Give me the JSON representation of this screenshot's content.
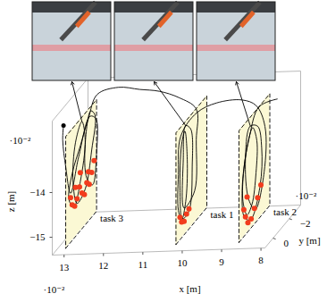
{
  "chart_data": {
    "type": "line3d",
    "x_label": "x [m]",
    "y_label": "y [m]",
    "z_label": "z [m]",
    "x_scale_text": "·10⁻²",
    "y_scale_text": "·10⁻²",
    "z_scale_text": "·10⁻²",
    "xlim": [
      13.3,
      7.9
    ],
    "xticks": [
      13,
      12,
      11,
      10,
      9,
      8
    ],
    "ylim": [
      1,
      -3.4
    ],
    "yticks": [
      0,
      {
        "value": -2,
        "label": "−2"
      }
    ],
    "zlim": [
      -15.4,
      -12.4
    ],
    "zticks": [
      {
        "value": -15,
        "label": "−15"
      },
      {
        "value": -14,
        "label": "−14"
      }
    ],
    "tasks": [
      {
        "name": "task 3",
        "x": 13.0,
        "y": [
          0.8,
          -3.0
        ],
        "z": [
          -15.3,
          -12.8
        ]
      },
      {
        "name": "task 1",
        "x": 10.2,
        "y": [
          0.8,
          -3.0
        ],
        "z": [
          -15.3,
          -12.8
        ]
      },
      {
        "name": "task 2",
        "x": 8.6,
        "y": [
          0.8,
          -3.0
        ],
        "z": [
          -15.3,
          -12.8
        ]
      }
    ],
    "series": [
      {
        "type": "line",
        "color": "#000000",
        "points": [
          [
            8.0,
            -1.0,
            -12.5
          ],
          [
            8.5,
            -1.2,
            -12.7
          ],
          [
            8.6,
            -0.5,
            -13.2
          ],
          [
            8.6,
            0.2,
            -13.8
          ],
          [
            8.6,
            0.3,
            -14.5
          ],
          [
            8.6,
            -0.2,
            -14.9
          ],
          [
            8.6,
            -0.8,
            -14.8
          ],
          [
            8.6,
            -1.3,
            -14.2
          ],
          [
            8.6,
            -1.4,
            -13.5
          ],
          [
            8.6,
            -0.9,
            -13.1
          ],
          [
            8.6,
            -0.2,
            -13.4
          ],
          [
            8.6,
            0.4,
            -14.2
          ],
          [
            8.6,
            0.1,
            -14.9
          ],
          [
            8.6,
            -0.6,
            -15.1
          ],
          [
            8.6,
            -1.8,
            -14.6
          ],
          [
            8.6,
            -2.0,
            -13.8
          ],
          [
            8.6,
            -1.5,
            -13.2
          ],
          [
            8.6,
            -0.6,
            -13.0
          ],
          [
            8.6,
            0.0,
            -13.6
          ],
          [
            8.6,
            -0.4,
            -14.6
          ],
          [
            8.6,
            -1.2,
            -15.0
          ],
          [
            8.6,
            -2.3,
            -14.4
          ],
          [
            8.6,
            -2.4,
            -13.4
          ],
          [
            8.7,
            -1.8,
            -12.8
          ],
          [
            9.0,
            -1.5,
            -12.6
          ],
          [
            9.5,
            -0.8,
            -12.5
          ],
          [
            9.9,
            -0.3,
            -12.6
          ],
          [
            10.2,
            0.2,
            -13.0
          ],
          [
            10.2,
            0.5,
            -13.8
          ],
          [
            10.2,
            0.5,
            -14.6
          ],
          [
            10.2,
            0.1,
            -14.9
          ],
          [
            10.2,
            -0.4,
            -14.6
          ],
          [
            10.2,
            -0.6,
            -13.8
          ],
          [
            10.2,
            -0.3,
            -13.0
          ],
          [
            10.2,
            0.1,
            -13.2
          ],
          [
            10.2,
            0.3,
            -14.2
          ],
          [
            10.2,
            0.0,
            -14.9
          ],
          [
            10.2,
            -0.8,
            -14.9
          ],
          [
            10.2,
            -1.2,
            -14.0
          ],
          [
            10.2,
            -1.0,
            -13.1
          ],
          [
            10.2,
            -0.4,
            -12.9
          ],
          [
            10.2,
            -0.1,
            -13.6
          ],
          [
            10.2,
            -0.2,
            -14.7
          ],
          [
            10.2,
            -1.5,
            -14.6
          ],
          [
            10.2,
            -1.7,
            -13.5
          ],
          [
            10.1,
            -1.2,
            -12.7
          ],
          [
            10.6,
            -1.5,
            -12.5
          ],
          [
            11.2,
            -2.0,
            -12.45
          ],
          [
            11.8,
            -2.5,
            -12.5
          ],
          [
            12.4,
            -2.8,
            -12.5
          ],
          [
            12.9,
            -2.6,
            -12.6
          ],
          [
            13.0,
            -2.0,
            -13.0
          ],
          [
            13.0,
            -1.0,
            -13.4
          ],
          [
            13.0,
            0.0,
            -13.8
          ],
          [
            13.0,
            0.4,
            -14.3
          ],
          [
            13.0,
            -0.2,
            -14.6
          ],
          [
            13.0,
            -1.0,
            -14.2
          ],
          [
            13.0,
            -1.6,
            -13.4
          ],
          [
            13.0,
            -1.2,
            -12.9
          ],
          [
            13.0,
            -0.4,
            -13.2
          ],
          [
            13.0,
            -0.1,
            -14.0
          ],
          [
            13.0,
            -0.6,
            -14.6
          ],
          [
            13.0,
            -1.6,
            -14.5
          ],
          [
            13.0,
            -2.4,
            -13.8
          ],
          [
            13.0,
            -2.8,
            -13.1
          ],
          [
            13.0,
            -2.3,
            -12.9
          ],
          [
            13.0,
            -1.6,
            -13.5
          ],
          [
            13.0,
            -1.8,
            -14.3
          ],
          [
            13.0,
            -2.5,
            -14.6
          ],
          [
            13.0,
            -3.0,
            -14.0
          ],
          [
            13.0,
            -2.9,
            -13.2
          ],
          [
            13.0,
            -2.2,
            -13.0
          ],
          [
            13.0,
            -0.8,
            -13.6
          ],
          [
            13.0,
            0.2,
            -14.2
          ],
          [
            13.1,
            0.3,
            -13.6
          ],
          [
            13.2,
            0.2,
            -13.0
          ],
          [
            13.2,
            0.1,
            -12.7
          ]
        ]
      },
      {
        "type": "scatter",
        "color": "#f23c1d",
        "points": [
          [
            13.0,
            0.2,
            -14.3
          ],
          [
            13.0,
            0.0,
            -14.5
          ],
          [
            13.0,
            -0.3,
            -14.6
          ],
          [
            13.0,
            -0.6,
            -14.5
          ],
          [
            13.0,
            -0.9,
            -14.3
          ],
          [
            13.0,
            -1.2,
            -14.5
          ],
          [
            13.0,
            -1.5,
            -14.6
          ],
          [
            13.0,
            -1.8,
            -14.4
          ],
          [
            13.0,
            -2.1,
            -14.5
          ],
          [
            13.0,
            -2.4,
            -14.3
          ],
          [
            13.0,
            -2.7,
            -14.1
          ],
          [
            13.0,
            -0.4,
            -14.2
          ],
          [
            13.0,
            -1.0,
            -14.0
          ],
          [
            13.0,
            -2.0,
            -14.2
          ],
          [
            10.2,
            0.3,
            -14.8
          ],
          [
            10.2,
            0.1,
            -14.95
          ],
          [
            10.2,
            -0.2,
            -15.0
          ],
          [
            10.2,
            -0.5,
            -14.9
          ],
          [
            10.2,
            -0.8,
            -14.85
          ],
          [
            8.6,
            0.2,
            -14.7
          ],
          [
            8.6,
            0.0,
            -14.9
          ],
          [
            8.6,
            -0.3,
            -15.1
          ],
          [
            8.6,
            -0.7,
            -15.1
          ],
          [
            8.6,
            -1.1,
            -14.95
          ],
          [
            8.6,
            -1.5,
            -14.8
          ],
          [
            8.6,
            -1.9,
            -14.6
          ],
          [
            8.6,
            -0.2,
            -14.5
          ]
        ]
      }
    ]
  }
}
